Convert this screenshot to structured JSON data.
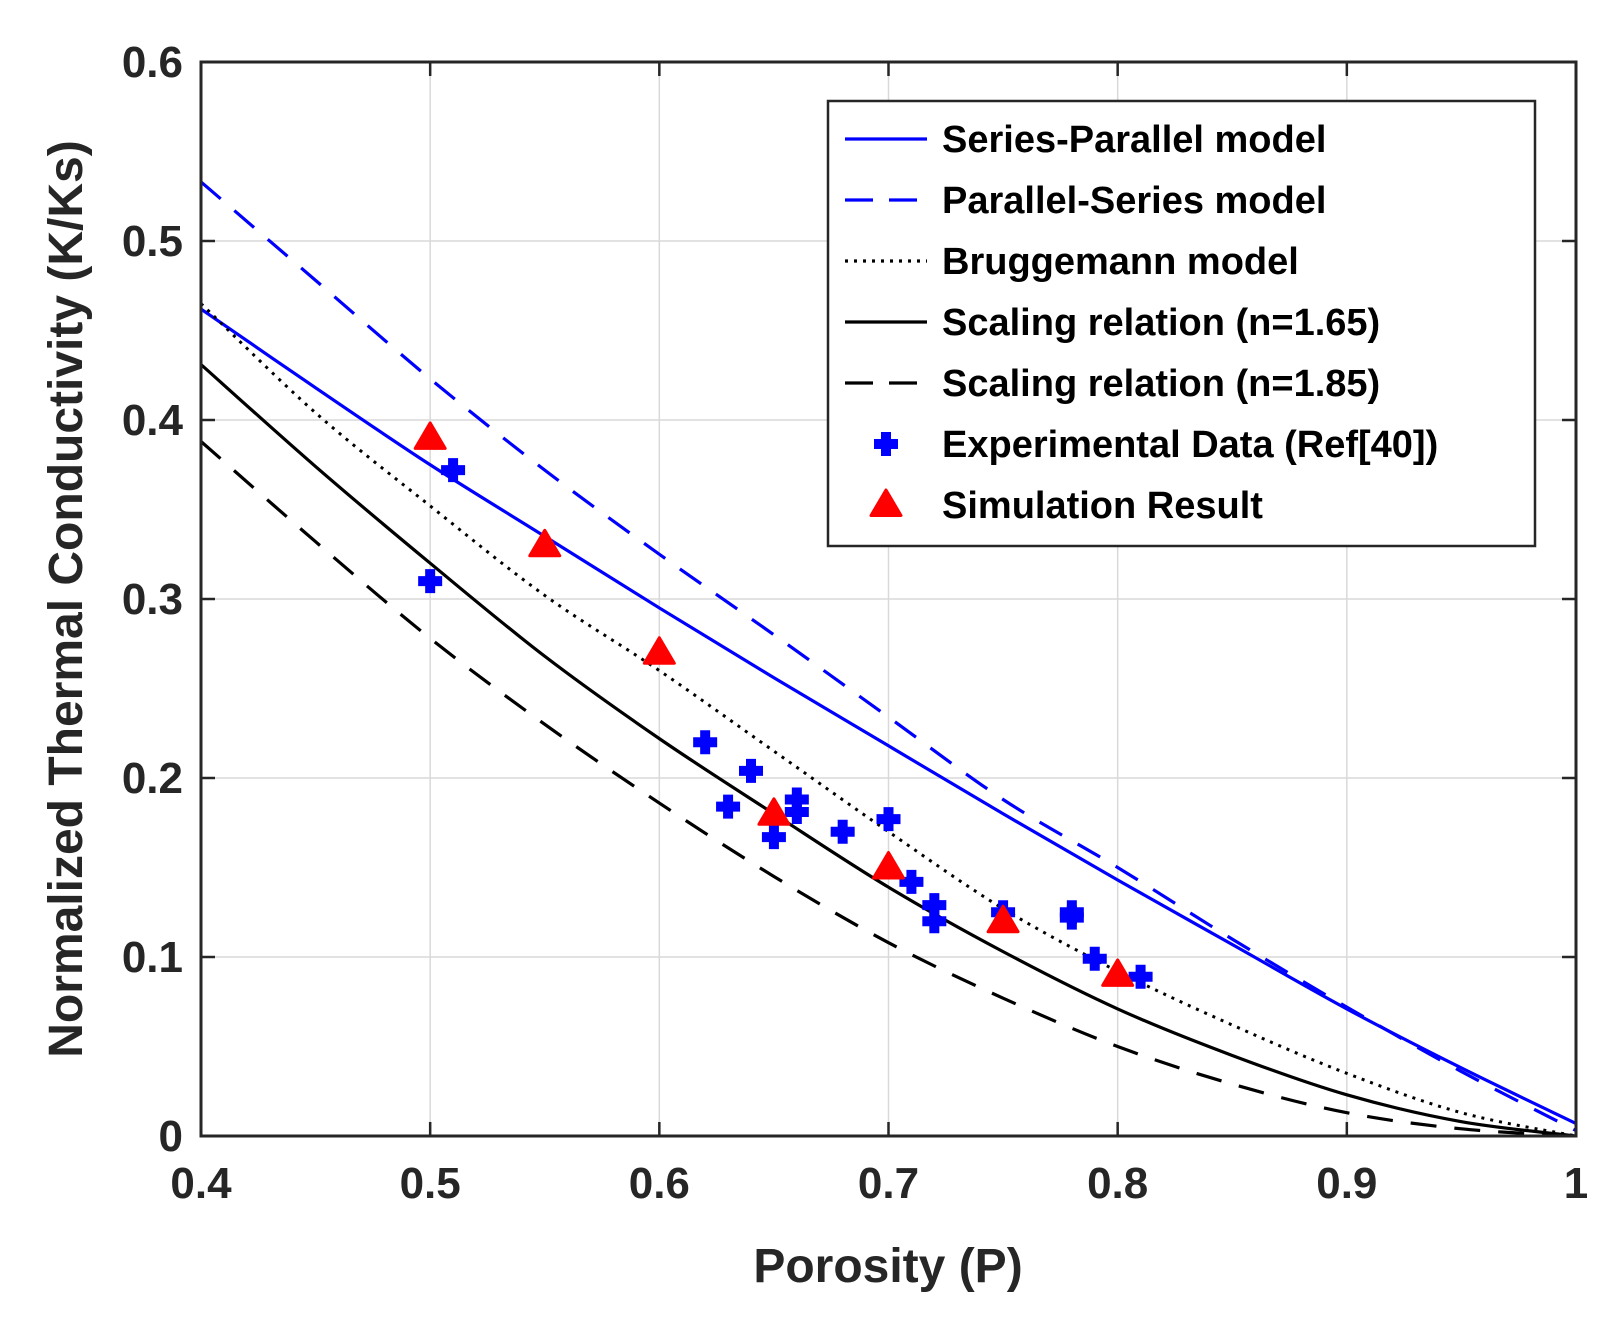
{
  "chart_data": {
    "type": "line",
    "title": "",
    "xlabel": "Porosity (P)",
    "ylabel": "Normalized Thermal Conductivity (K/Ks)",
    "xlim": [
      0.4,
      1
    ],
    "ylim": [
      0,
      0.6
    ],
    "grid": true,
    "legend_position": "top-right",
    "xticks": [
      {
        "value": 0.4,
        "label": "0.4"
      },
      {
        "value": 0.5,
        "label": "0.5"
      },
      {
        "value": 0.6,
        "label": "0.6"
      },
      {
        "value": 0.7,
        "label": "0.7"
      },
      {
        "value": 0.8,
        "label": "0.8"
      },
      {
        "value": 0.9,
        "label": "0.9"
      },
      {
        "value": 1,
        "label": "1"
      }
    ],
    "yticks": [
      {
        "value": 0,
        "label": "0"
      },
      {
        "value": 0.1,
        "label": "0.1"
      },
      {
        "value": 0.2,
        "label": "0.2"
      },
      {
        "value": 0.3,
        "label": "0.3"
      },
      {
        "value": 0.4,
        "label": "0.4"
      },
      {
        "value": 0.5,
        "label": "0.5"
      },
      {
        "value": 0.6,
        "label": "0.6"
      }
    ],
    "series": [
      {
        "name": "Series-Parallel model",
        "kind": "line",
        "color": "#0000ff",
        "dash": "solid",
        "x": [
          0.4,
          0.45,
          0.5,
          0.55,
          0.6,
          0.65,
          0.7,
          0.75,
          0.8,
          0.85,
          0.9,
          0.95,
          1.0
        ],
        "y": [
          0.462,
          0.418,
          0.375,
          0.335,
          0.295,
          0.256,
          0.218,
          0.18,
          0.143,
          0.107,
          0.071,
          0.038,
          0.007
        ]
      },
      {
        "name": "Parallel-Series model",
        "kind": "line",
        "color": "#0000ff",
        "dash": "dashed",
        "x": [
          0.4,
          0.45,
          0.5,
          0.55,
          0.6,
          0.65,
          0.7,
          0.75,
          0.8,
          0.85,
          0.9,
          0.95,
          1.0
        ],
        "y": [
          0.533,
          0.478,
          0.423,
          0.372,
          0.325,
          0.28,
          0.234,
          0.188,
          0.15,
          0.11,
          0.072,
          0.036,
          0.003
        ]
      },
      {
        "name": "Bruggemann model",
        "kind": "line",
        "color": "#000000",
        "dash": "dotted",
        "x": [
          0.4,
          0.45,
          0.5,
          0.55,
          0.6,
          0.65,
          0.7,
          0.75,
          0.8,
          0.85,
          0.9,
          0.95,
          1.0
        ],
        "y": [
          0.465,
          0.404,
          0.352,
          0.302,
          0.26,
          0.215,
          0.17,
          0.127,
          0.092,
          0.062,
          0.035,
          0.013,
          0.0
        ]
      },
      {
        "name": "Scaling relation (n=1.65)",
        "kind": "line",
        "color": "#000000",
        "dash": "solid",
        "x": [
          0.4,
          0.45,
          0.5,
          0.55,
          0.6,
          0.65,
          0.7,
          0.75,
          0.8,
          0.85,
          0.9,
          0.95,
          1.0
        ],
        "y": [
          0.431,
          0.374,
          0.32,
          0.268,
          0.222,
          0.18,
          0.139,
          0.103,
          0.071,
          0.045,
          0.023,
          0.008,
          0.0
        ]
      },
      {
        "name": "Scaling relation (n=1.85)",
        "kind": "line",
        "color": "#000000",
        "dash": "dashed",
        "x": [
          0.4,
          0.45,
          0.5,
          0.55,
          0.6,
          0.65,
          0.7,
          0.75,
          0.8,
          0.85,
          0.9,
          0.95,
          1.0
        ],
        "y": [
          0.388,
          0.332,
          0.278,
          0.23,
          0.186,
          0.145,
          0.108,
          0.077,
          0.05,
          0.029,
          0.013,
          0.004,
          0.0
        ]
      },
      {
        "name": "Experimental Data (Ref[40])",
        "kind": "scatter",
        "marker": "plus",
        "color": "#0000ff",
        "x": [
          0.5,
          0.51,
          0.62,
          0.63,
          0.64,
          0.65,
          0.66,
          0.66,
          0.68,
          0.7,
          0.71,
          0.72,
          0.72,
          0.75,
          0.78,
          0.78,
          0.79,
          0.81
        ],
        "y": [
          0.31,
          0.372,
          0.22,
          0.184,
          0.204,
          0.167,
          0.188,
          0.181,
          0.17,
          0.177,
          0.142,
          0.129,
          0.12,
          0.125,
          0.125,
          0.122,
          0.099,
          0.089
        ]
      },
      {
        "name": "Simulation Result",
        "kind": "scatter",
        "marker": "triangle",
        "color": "#ff0000",
        "x": [
          0.5,
          0.55,
          0.6,
          0.65,
          0.7,
          0.75,
          0.8
        ],
        "y": [
          0.39,
          0.33,
          0.27,
          0.18,
          0.15,
          0.12,
          0.09
        ]
      }
    ]
  }
}
